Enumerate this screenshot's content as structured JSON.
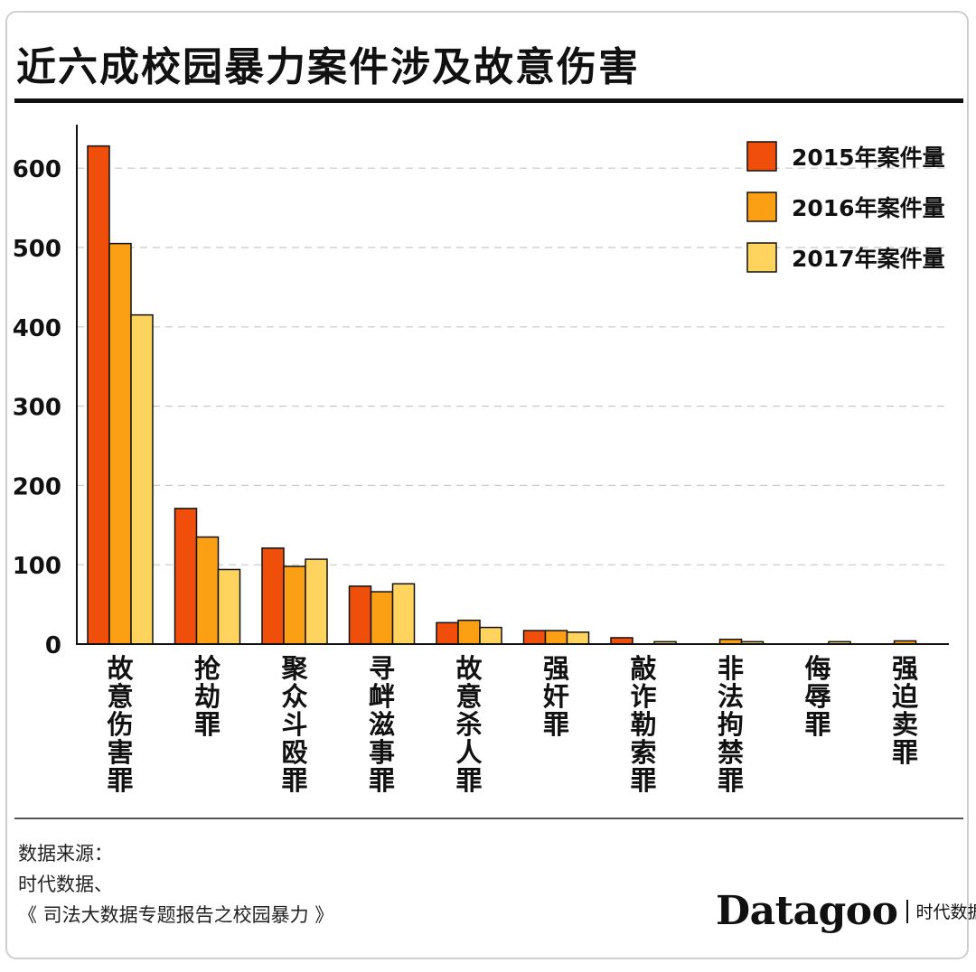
{
  "title": "近六成校园暴力案件涉及故意伤害",
  "source": {
    "lines": [
      "数据来源：",
      "时代数据、",
      "《 司法大数据专题报告之校园暴力 》"
    ]
  },
  "logo": {
    "wordmark": "Datagoo",
    "cn": "时代数据"
  },
  "colors": {
    "s2015": "#f04e0b",
    "s2016": "#fb9f15",
    "s2017": "#fed35e",
    "grid": "#c8c8c8"
  },
  "chart_data": {
    "type": "bar",
    "categories": [
      "故意伤害罪",
      "抢劫罪",
      "聚众斗殴罪",
      "寻衅滋事罪",
      "故意杀人罪",
      "强奸罪",
      "敲诈勒索罪",
      "非法拘禁罪",
      "侮辱罪",
      "强迫卖罪"
    ],
    "series": [
      {
        "name": "2015年案件量",
        "values": [
          628,
          171,
          121,
          73,
          27,
          17,
          8,
          0,
          0,
          0
        ]
      },
      {
        "name": "2016年案件量",
        "values": [
          505,
          135,
          98,
          66,
          30,
          17,
          0,
          6,
          0,
          4
        ]
      },
      {
        "name": "2017年案件量",
        "values": [
          415,
          94,
          107,
          76,
          21,
          15,
          3,
          3,
          3,
          0
        ]
      }
    ],
    "yticks": [
      0,
      100,
      200,
      300,
      400,
      500,
      600
    ],
    "ylim": [
      0,
      640
    ],
    "grid": true,
    "legend": "top-right"
  }
}
